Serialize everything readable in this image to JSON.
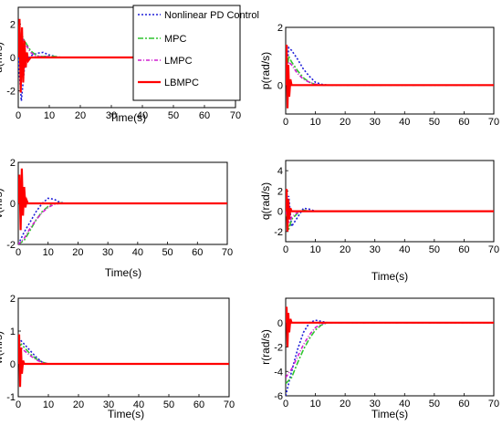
{
  "chart_data": {
    "type": "line",
    "line_colors": {
      "Nonlinear PD Control": "#1f1fd8",
      "MPC": "#2fc42f",
      "LMPC": "#d01fd0",
      "LBMPC": "#ff0000"
    },
    "legend": {
      "placement": "top-right of top-left panel",
      "entries": [
        "Nonlinear PD Control",
        "MPC",
        "LMPC",
        "LBMPC"
      ]
    },
    "panels": [
      {
        "id": "u",
        "ylabel": "u(m/s)",
        "xlabel": "Time(s)",
        "xlim": [
          0,
          70
        ],
        "ylim": [
          -3,
          3
        ],
        "xticks": [
          "0",
          "10",
          "20",
          "30",
          "40",
          "50",
          "60",
          "70"
        ],
        "yticks": [
          "2",
          "0",
          "-2"
        ],
        "series": [
          {
            "name": "Nonlinear PD Control",
            "x": [
              0,
              1,
              2,
              3,
              4,
              6,
              8,
              10,
              12,
              14,
              16,
              70
            ],
            "y": [
              0,
              -2.6,
              -0.6,
              -0.1,
              0.1,
              0.25,
              0.3,
              0.15,
              0.05,
              0,
              0,
              0
            ]
          },
          {
            "name": "MPC",
            "x": [
              0,
              1,
              2,
              4,
              6,
              8,
              10,
              12,
              14,
              70
            ],
            "y": [
              0,
              1.4,
              1.0,
              0.4,
              0.1,
              0.05,
              0.1,
              0.05,
              0,
              0
            ]
          },
          {
            "name": "LMPC",
            "x": [
              0,
              1,
              2,
              4,
              6,
              8,
              10,
              12,
              70
            ],
            "y": [
              0,
              1.3,
              0.9,
              0.3,
              0.05,
              0.05,
              0.05,
              0,
              0
            ]
          },
          {
            "name": "LBMPC",
            "x": [
              0,
              0.4,
              0.8,
              1.2,
              1.6,
              2.0,
              2.4,
              2.8,
              3.2,
              4.0,
              70
            ],
            "y": [
              0,
              2.3,
              -2.1,
              1.8,
              -1.5,
              1.0,
              -0.6,
              0.3,
              -0.2,
              0,
              0
            ]
          }
        ]
      },
      {
        "id": "p",
        "ylabel": "p(rad/s)",
        "xlabel": "",
        "xlim": [
          0,
          70
        ],
        "ylim": [
          -1,
          2
        ],
        "xticks": [
          "0",
          "10",
          "20",
          "30",
          "40",
          "50",
          "60",
          "70"
        ],
        "yticks": [
          "2",
          "0"
        ],
        "series": [
          {
            "name": "Nonlinear PD Control",
            "x": [
              0,
              1,
              2,
              4,
              6,
              8,
              10,
              12,
              14,
              70
            ],
            "y": [
              0,
              1.3,
              1.2,
              0.9,
              0.55,
              0.3,
              0.1,
              0.03,
              0,
              0
            ]
          },
          {
            "name": "MPC",
            "x": [
              0,
              1,
              2,
              4,
              6,
              8,
              10,
              12,
              70
            ],
            "y": [
              0,
              1.0,
              0.8,
              0.5,
              0.25,
              0.1,
              0.02,
              0,
              0
            ]
          },
          {
            "name": "LMPC",
            "x": [
              0,
              1,
              2,
              4,
              6,
              8,
              10,
              12,
              70
            ],
            "y": [
              0,
              0.8,
              0.7,
              0.4,
              0.2,
              0.1,
              0.03,
              0,
              0
            ]
          },
          {
            "name": "LBMPC",
            "x": [
              0,
              0.3,
              0.6,
              0.9,
              1.2,
              1.6,
              2.0,
              70
            ],
            "y": [
              0,
              1.4,
              -0.8,
              0.7,
              -0.4,
              0.2,
              0,
              0
            ]
          }
        ]
      },
      {
        "id": "v",
        "ylabel": "v(m/s)",
        "xlabel": "Time(s)",
        "xlim": [
          0,
          70
        ],
        "ylim": [
          -2,
          2
        ],
        "xticks": [
          "0",
          "10",
          "20",
          "30",
          "40",
          "50",
          "60",
          "70"
        ],
        "yticks": [
          "2",
          "0",
          "-2"
        ],
        "series": [
          {
            "name": "Nonlinear PD Control",
            "x": [
              0,
              2,
              4,
              6,
              8,
              10,
              12,
              14,
              16,
              70
            ],
            "y": [
              -2,
              -1.4,
              -0.9,
              -0.4,
              0,
              0.25,
              0.2,
              0.05,
              0,
              0
            ]
          },
          {
            "name": "MPC",
            "x": [
              0,
              2,
              4,
              6,
              8,
              10,
              12,
              14,
              16,
              70
            ],
            "y": [
              -2,
              -1.8,
              -1.3,
              -0.8,
              -0.4,
              -0.15,
              0,
              0.03,
              0,
              0
            ]
          },
          {
            "name": "LMPC",
            "x": [
              0,
              2,
              4,
              6,
              8,
              10,
              12,
              14,
              16,
              70
            ],
            "y": [
              -2,
              -1.7,
              -1.2,
              -0.8,
              -0.45,
              -0.2,
              -0.05,
              0,
              0,
              0
            ]
          },
          {
            "name": "LBMPC",
            "x": [
              0,
              0.4,
              0.8,
              1.2,
              1.6,
              2.0,
              2.4,
              2.8,
              3.2,
              70
            ],
            "y": [
              0,
              1.4,
              -1.3,
              1.7,
              -0.6,
              0.8,
              -0.2,
              0.15,
              0,
              0
            ]
          }
        ]
      },
      {
        "id": "q",
        "ylabel": "q(rad/s)",
        "xlabel": "Time(s)",
        "xlim": [
          0,
          70
        ],
        "ylim": [
          -3,
          5
        ],
        "xticks": [
          "0",
          "10",
          "20",
          "30",
          "40",
          "50",
          "60",
          "70"
        ],
        "yticks": [
          "4",
          "2",
          "0",
          "-2"
        ],
        "series": [
          {
            "name": "Nonlinear PD Control",
            "x": [
              0,
              1,
              2,
              4,
              6,
              8,
              10,
              70
            ],
            "y": [
              0,
              1.5,
              -1.5,
              -0.6,
              0.3,
              0.2,
              0,
              0
            ]
          },
          {
            "name": "MPC",
            "x": [
              0,
              1,
              2,
              4,
              6,
              8,
              70
            ],
            "y": [
              0,
              -1.8,
              -0.8,
              -0.2,
              0.1,
              0,
              0
            ]
          },
          {
            "name": "LMPC",
            "x": [
              0,
              1,
              2,
              4,
              6,
              70
            ],
            "y": [
              0,
              -1.2,
              -0.6,
              -0.1,
              0,
              0
            ]
          },
          {
            "name": "LBMPC",
            "x": [
              0,
              0.3,
              0.6,
              0.9,
              1.2,
              1.6,
              2.0,
              70
            ],
            "y": [
              0,
              2.2,
              -2.0,
              1.2,
              -0.8,
              0.3,
              0,
              0
            ]
          }
        ]
      },
      {
        "id": "w",
        "ylabel": "w(m/s)",
        "xlabel": "Time(s)",
        "xlim": [
          0,
          70
        ],
        "ylim": [
          -1,
          2
        ],
        "xticks": [
          "0",
          "10",
          "20",
          "30",
          "40",
          "50",
          "60",
          "70"
        ],
        "yticks": [
          "2",
          "1",
          "0",
          "-1"
        ],
        "series": [
          {
            "name": "Nonlinear PD Control",
            "x": [
              0,
              1,
              2,
              4,
              6,
              8,
              10,
              70
            ],
            "y": [
              0.8,
              0.7,
              0.6,
              0.4,
              0.2,
              0.05,
              0,
              0
            ]
          },
          {
            "name": "MPC",
            "x": [
              0,
              1,
              2,
              4,
              6,
              8,
              10,
              70
            ],
            "y": [
              0.5,
              0.6,
              0.5,
              0.3,
              0.15,
              0.05,
              0,
              0
            ]
          },
          {
            "name": "LMPC",
            "x": [
              0,
              1,
              2,
              4,
              6,
              8,
              10,
              70
            ],
            "y": [
              0.4,
              0.5,
              0.4,
              0.25,
              0.12,
              0.04,
              0,
              0
            ]
          },
          {
            "name": "LBMPC",
            "x": [
              0,
              0.3,
              0.6,
              0.9,
              1.2,
              1.6,
              2.0,
              70
            ],
            "y": [
              0,
              0.9,
              -0.7,
              0.5,
              -0.3,
              0.1,
              0,
              0
            ]
          }
        ]
      },
      {
        "id": "r",
        "ylabel": "r(rad/s)",
        "xlabel": "Time(s)",
        "xlim": [
          0,
          70
        ],
        "ylim": [
          -6,
          2
        ],
        "xticks": [
          "0",
          "10",
          "20",
          "30",
          "40",
          "50",
          "60",
          "70"
        ],
        "yticks": [
          "0",
          "-2",
          "-4",
          "-6"
        ],
        "series": [
          {
            "name": "Nonlinear PD Control",
            "x": [
              0,
              2,
              4,
              6,
              8,
              10,
              12,
              14,
              70
            ],
            "y": [
              -6,
              -4,
              -2.2,
              -0.8,
              0,
              0.2,
              0.1,
              0,
              0
            ]
          },
          {
            "name": "MPC",
            "x": [
              0,
              2,
              4,
              6,
              8,
              10,
              12,
              14,
              16,
              70
            ],
            "y": [
              -5,
              -4.5,
              -3.3,
              -2.2,
              -1.3,
              -0.6,
              -0.2,
              0,
              0,
              0
            ]
          },
          {
            "name": "LMPC",
            "x": [
              0,
              2,
              4,
              6,
              8,
              10,
              12,
              14,
              70
            ],
            "y": [
              -4.5,
              -3.8,
              -2.8,
              -1.8,
              -1.0,
              -0.4,
              -0.1,
              0,
              0
            ]
          },
          {
            "name": "LBMPC",
            "x": [
              0,
              0.3,
              0.6,
              0.9,
              1.2,
              1.6,
              2.0,
              70
            ],
            "y": [
              0,
              1.3,
              -2.0,
              0.8,
              -0.8,
              0.3,
              0,
              0
            ]
          }
        ]
      }
    ]
  }
}
